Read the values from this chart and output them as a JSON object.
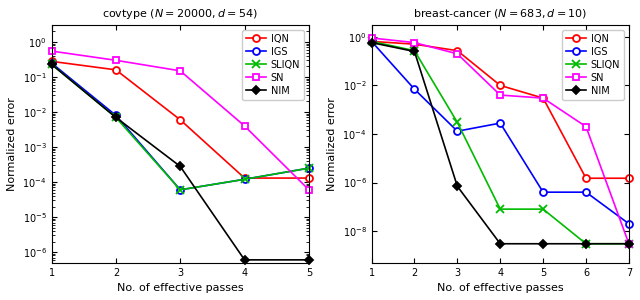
{
  "covtype": {
    "title": "covtype ($N = 20000, d = 54$)",
    "xlabel": "No. of effective passes",
    "ylabel": "Normalized error",
    "xlim": [
      1,
      5
    ],
    "ylim": [
      5e-07,
      3
    ],
    "xticks": [
      1,
      2,
      3,
      4,
      5
    ],
    "series": {
      "IQN": {
        "x": [
          1,
          2,
          3,
          4,
          5
        ],
        "y": [
          0.28,
          0.16,
          0.006,
          0.00013,
          0.00013
        ],
        "color": "#ff0000",
        "marker": "o",
        "markersize": 5
      },
      "IGS": {
        "x": [
          1,
          2,
          3,
          4,
          5
        ],
        "y": [
          0.25,
          0.008,
          6e-05,
          0.00012,
          0.00025
        ],
        "color": "#0000ff",
        "marker": "o",
        "markersize": 5
      },
      "SLIQN": {
        "x": [
          1,
          2,
          3,
          4,
          5
        ],
        "y": [
          0.23,
          0.007,
          6e-05,
          0.00012,
          0.00025
        ],
        "color": "#00bb00",
        "marker": "x",
        "markersize": 6
      },
      "SN": {
        "x": [
          1,
          2,
          3,
          4,
          5
        ],
        "y": [
          0.55,
          0.3,
          0.15,
          0.004,
          6e-05
        ],
        "color": "#ff00ff",
        "marker": "s",
        "markersize": 5
      },
      "NIM": {
        "x": [
          1,
          2,
          3,
          4,
          5
        ],
        "y": [
          0.23,
          0.007,
          0.00028,
          6e-07,
          6e-07
        ],
        "color": "#000000",
        "marker": "D",
        "markersize": 4
      }
    }
  },
  "breast_cancer": {
    "title": "breast-cancer ($N = 683, d = 10$)",
    "xlabel": "No. of effective passes",
    "ylabel": "Normalized error",
    "xlim": [
      1,
      7
    ],
    "ylim": [
      5e-10,
      3
    ],
    "xticks": [
      1,
      2,
      3,
      4,
      5,
      6,
      7
    ],
    "series": {
      "IQN": {
        "x": [
          1,
          2,
          3,
          4,
          5,
          6,
          7
        ],
        "y": [
          0.65,
          0.5,
          0.27,
          0.01,
          0.003,
          1.5e-06,
          1.5e-06
        ],
        "color": "#ff0000",
        "marker": "o",
        "markersize": 5
      },
      "IGS": {
        "x": [
          1,
          2,
          3,
          4,
          5,
          6,
          7
        ],
        "y": [
          0.65,
          0.007,
          0.00013,
          0.00028,
          4e-07,
          4e-07,
          2e-08
        ],
        "color": "#0000ff",
        "marker": "o",
        "markersize": 5
      },
      "SLIQN": {
        "x": [
          1,
          2,
          3,
          4,
          5,
          6,
          7
        ],
        "y": [
          0.65,
          0.27,
          0.0003,
          8e-08,
          8e-08,
          3e-09,
          3e-09
        ],
        "color": "#00bb00",
        "marker": "x",
        "markersize": 6
      },
      "SN": {
        "x": [
          1,
          2,
          3,
          4,
          5,
          6,
          7
        ],
        "y": [
          0.9,
          0.58,
          0.2,
          0.004,
          0.003,
          0.0002,
          3e-09
        ],
        "color": "#ff00ff",
        "marker": "s",
        "markersize": 5
      },
      "NIM": {
        "x": [
          1,
          2,
          3,
          4,
          5,
          6,
          7
        ],
        "y": [
          0.58,
          0.25,
          7e-07,
          3e-09,
          3e-09,
          3e-09,
          3e-09
        ],
        "color": "#000000",
        "marker": "D",
        "markersize": 4
      }
    }
  },
  "legend_order": [
    "IQN",
    "IGS",
    "SLIQN",
    "SN",
    "NIM"
  ]
}
